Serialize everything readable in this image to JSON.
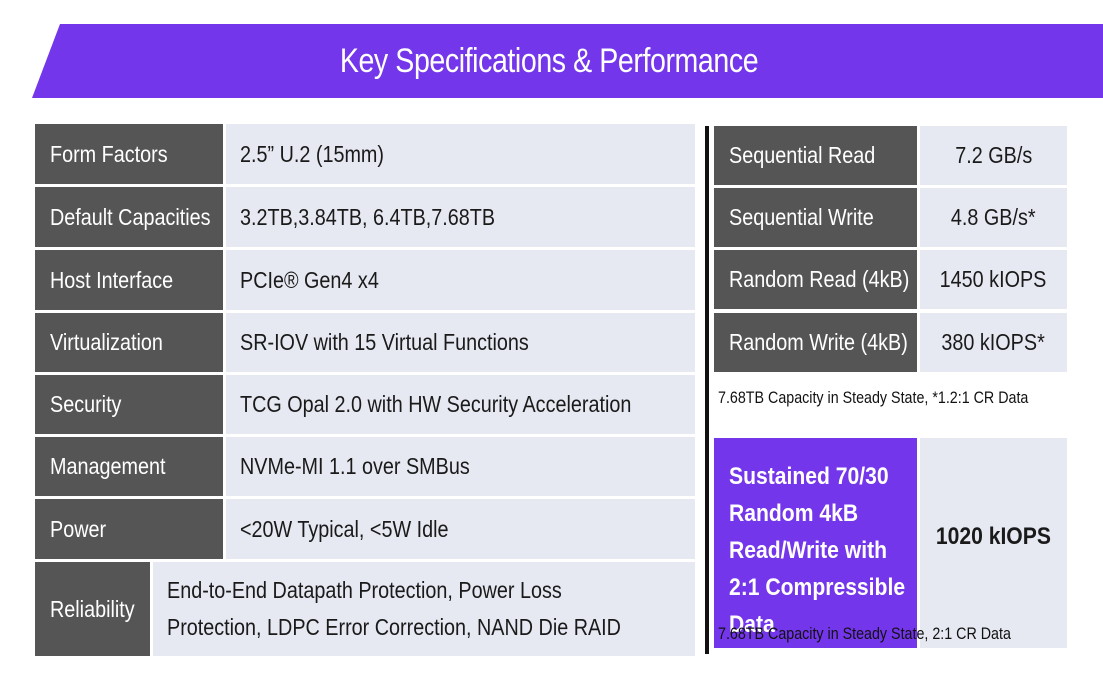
{
  "title": "Key Specifications & Performance",
  "specs": [
    {
      "label": "Form Factors",
      "value": "2.5” U.2 (15mm)"
    },
    {
      "label": "Default Capacities",
      "value": "3.2TB,3.84TB, 6.4TB,7.68TB"
    },
    {
      "label": "Host Interface",
      "value": "PCIe® Gen4 x4"
    },
    {
      "label": "Virtualization",
      "value": "SR-IOV with 15 Virtual Functions"
    },
    {
      "label": "Security",
      "value": "TCG Opal 2.0 with HW Security Acceleration"
    },
    {
      "label": "Management",
      "value": "NVMe-MI 1.1 over SMBus"
    },
    {
      "label": "Power",
      "value": "<20W Typical, <5W Idle"
    },
    {
      "label": "Reliability",
      "value_lines": [
        "End-to-End Datapath Protection, Power Loss",
        "Protection, LDPC Error Correction, NAND Die RAID"
      ]
    }
  ],
  "performance": [
    {
      "label": "Sequential Read",
      "value": "7.2 GB/s"
    },
    {
      "label": "Sequential Write",
      "value": "4.8 GB/s*"
    },
    {
      "label": "Random Read (4kB)",
      "value": "1450 kIOPS"
    },
    {
      "label": "Random Write (4kB)",
      "value": "380 kIOPS*"
    }
  ],
  "performance_note": "7.68TB Capacity in Steady State, *1.2:1 CR Data",
  "sustained": {
    "label_lines": [
      "Sustained 70/30",
      "Random 4kB",
      "Read/Write with",
      "2:1 Compressible",
      "Data"
    ],
    "value": "1020 kIOPS",
    "note": "7.68TB Capacity in Steady State, 2:1 CR Data"
  },
  "colors": {
    "accent": "#7436ea",
    "label_bg": "#555555",
    "value_bg": "#e6e8f2"
  }
}
